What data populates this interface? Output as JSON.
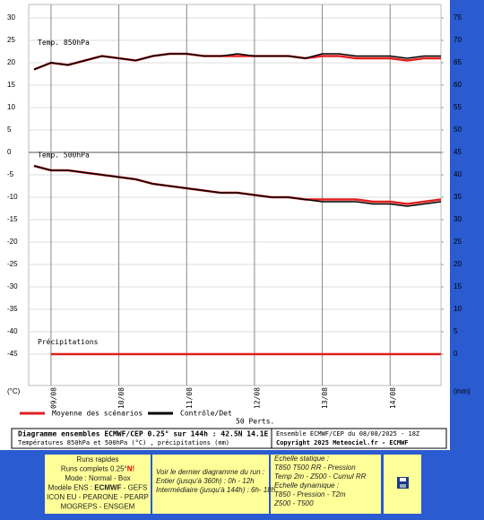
{
  "chart_data": {
    "type": "line",
    "categories": [
      null,
      "09/08",
      null,
      null,
      null,
      "10/08",
      null,
      null,
      null,
      "11/08",
      null,
      null,
      null,
      "12/08",
      null,
      null,
      null,
      "13/08",
      null,
      null,
      null,
      "14/08",
      null,
      null,
      null
    ],
    "series": [
      {
        "name": "Moyenne des scénarios",
        "color": "#e02020",
        "values": [
          18.5,
          20,
          19.5,
          20.5,
          21.5,
          21,
          20.5,
          21.5,
          22,
          22,
          21.5,
          21.5,
          21.5,
          21.5,
          21.5,
          21.5,
          21,
          21.5,
          21.5,
          21,
          21,
          21,
          20.5,
          21,
          21
        ]
      },
      {
        "name": "Contrôle/Det",
        "color": "#000000",
        "values": [
          18.5,
          20,
          19.5,
          20.5,
          21.5,
          21,
          20.5,
          21.5,
          22,
          22,
          21.5,
          21.5,
          22,
          21.5,
          21.5,
          21.5,
          21,
          22,
          22,
          21.5,
          21.5,
          21.5,
          21,
          21.5,
          21.5
        ]
      },
      {
        "name": "Moyenne des scénarios",
        "color": "#e02020",
        "values": [
          -3,
          -4,
          -4,
          -4.5,
          -5,
          -5.5,
          -6,
          -7,
          -7.5,
          -8,
          -8.5,
          -9,
          -9,
          -9.5,
          -10,
          -10,
          -10.5,
          -10.5,
          -10.5,
          -10.5,
          -11,
          -11,
          -11.5,
          -11,
          -10.5
        ]
      },
      {
        "name": "Contrôle/Det",
        "color": "#000000",
        "values": [
          -3,
          -4,
          -4,
          -4.5,
          -5,
          -5.5,
          -6,
          -7,
          -7.5,
          -8,
          -8.5,
          -9,
          -9,
          -9.5,
          -10,
          -10,
          -10.5,
          -11,
          -11,
          -11,
          -11.5,
          -11.5,
          -12,
          -11.5,
          -11
        ]
      },
      {
        "name": "Précipitations",
        "color": "#e02020",
        "axis": "y2",
        "values": [
          null,
          0,
          0,
          0,
          0,
          0,
          0,
          0,
          0,
          0,
          0,
          0,
          0,
          0,
          0,
          0,
          0,
          0,
          0,
          0,
          0,
          0,
          0,
          0,
          0
        ]
      }
    ],
    "annotations": [
      "Temp. 850hPa",
      "Temp. 500hPa"
    ],
    "y_label": "(°C)",
    "y2_label": "(mm)",
    "perturbations_label": "50 Perts.",
    "ylim": [
      -52,
      33
    ],
    "yticks": [
      30,
      25,
      20,
      15,
      10,
      5,
      0,
      -5,
      -10,
      -15,
      -20,
      -25,
      -30,
      -35,
      -40,
      -45
    ],
    "y2lim": [
      -7,
      78
    ],
    "y2ticks": [
      75,
      70,
      65,
      60,
      55,
      50,
      45,
      40,
      35,
      30,
      25,
      20,
      15,
      10,
      5,
      0
    ],
    "grid": true
  },
  "footer": {
    "title": "Diagramme ensembles ECMWF/CEP 0.25° sur 144h : 42.5N 14.1E",
    "subtitle": "Températures 850hPa et 500hPa (°C) , précipitations (mm)",
    "run": "Ensemble ECMWF/CEP du 08/08/2025 - 18Z",
    "copyright": "Copyright 2025 Meteociel.fr - ECMWF"
  },
  "menu": {
    "runs": [
      "Runs rapides",
      [
        "Runs complets 0.25°",
        "N!"
      ],
      "Mode : Normal - Box",
      [
        "Modèle ENS : ",
        "ECMWF",
        " - GEFS"
      ],
      "ICON EU - PEARONE - PEARP",
      "MOGREPS - ENSGEM"
    ],
    "last": [
      "Voir le dernier diagramme du run :",
      "Entier (jusqu'à 360h) : 0h - 12h",
      "Intermédiaire (jusqu'à 144h) : 6h- 18h"
    ],
    "scale": [
      "Echelle statique :",
      "T850 T500 RR - Pression",
      "Temp 2m - Z500 - Cumul RR",
      "Echelle dynamique :",
      "T850 - Pression - T2m",
      "Z500 - T500"
    ]
  }
}
